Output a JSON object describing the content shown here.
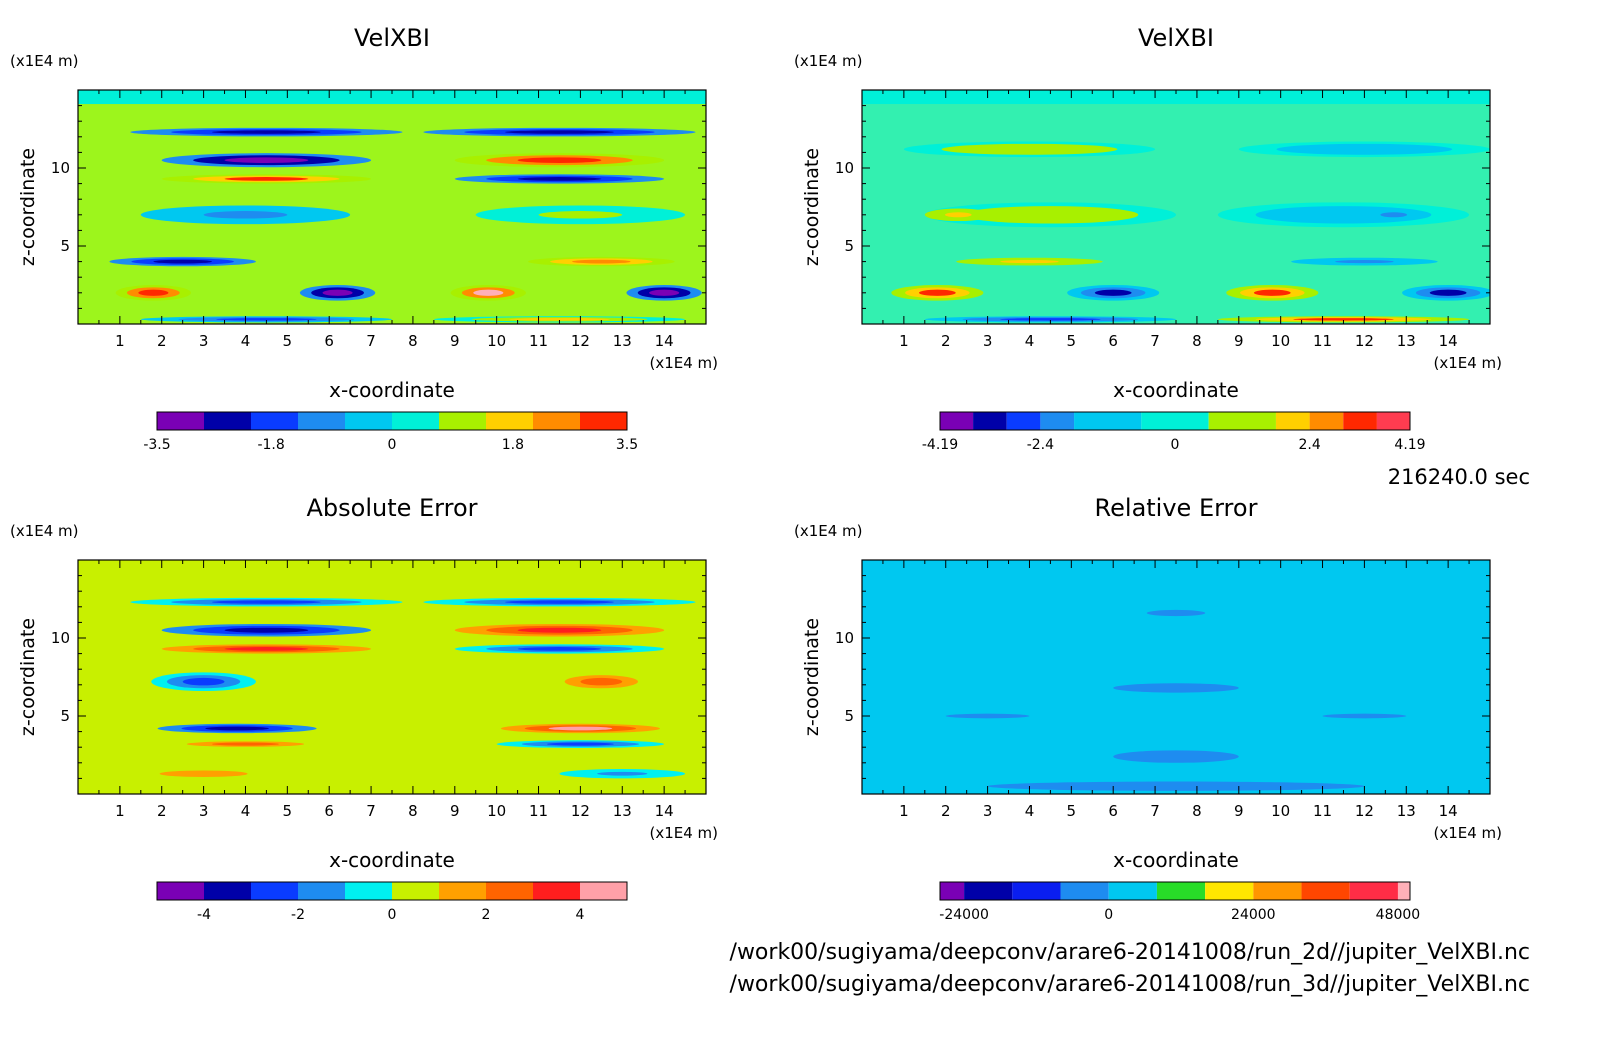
{
  "chart_data": [
    {
      "type": "heatmap",
      "title": "VelXBI",
      "xlabel": "x-coordinate",
      "ylabel": "z-coordinate",
      "x_unit": "(x1E4 m)",
      "y_unit": "(x1E4 m)",
      "xlim": [
        0,
        15
      ],
      "ylim": [
        0,
        15
      ],
      "x_ticks": [
        "1",
        "2",
        "3",
        "4",
        "5",
        "6",
        "7",
        "8",
        "9",
        "10",
        "11",
        "12",
        "13",
        "14"
      ],
      "y_ticks": [
        "5",
        "10"
      ],
      "colorbar": {
        "labels": [
          "-3.5",
          "-1.8",
          "0",
          "1.8",
          "3.5"
        ],
        "levels": [
          -3.5,
          -2.8,
          -2.1,
          -1.4,
          -0.7,
          0,
          0.7,
          1.4,
          2.1,
          2.8,
          3.5
        ],
        "colors": [
          "#7a00b5",
          "#0000a8",
          "#0a3cff",
          "#1e8cf0",
          "#00c8f0",
          "#00f0d8",
          "#a8f000",
          "#ffd000",
          "#ff8c00",
          "#ff2800",
          "#ff3c50",
          "#ffb0b8"
        ]
      },
      "background": "#9df51c",
      "features": [
        {
          "x": 4.5,
          "z": 12.3,
          "w": 6.5,
          "h": 0.55,
          "v": -2.5
        },
        {
          "x": 11.5,
          "z": 12.3,
          "w": 6.5,
          "h": 0.55,
          "v": -2.5
        },
        {
          "x": 4.5,
          "z": 10.5,
          "w": 5.0,
          "h": 0.9,
          "v": -3.2
        },
        {
          "x": 11.5,
          "z": 10.5,
          "w": 5.0,
          "h": 0.9,
          "v": 3.2
        },
        {
          "x": 4.5,
          "z": 9.3,
          "w": 5.0,
          "h": 0.6,
          "v": 2.8
        },
        {
          "x": 11.5,
          "z": 9.3,
          "w": 5.0,
          "h": 0.6,
          "v": -2.8
        },
        {
          "x": 4.0,
          "z": 7.0,
          "w": 5.0,
          "h": 1.2,
          "v": -0.8
        },
        {
          "x": 12.0,
          "z": 7.0,
          "w": 5.0,
          "h": 1.2,
          "v": 0.8
        },
        {
          "x": 2.5,
          "z": 4.0,
          "w": 3.5,
          "h": 0.6,
          "v": -2.6
        },
        {
          "x": 12.5,
          "z": 4.0,
          "w": 3.5,
          "h": 0.6,
          "v": 2.6
        },
        {
          "x": 1.8,
          "z": 2.0,
          "w": 1.8,
          "h": 1.0,
          "v": 3.3
        },
        {
          "x": 6.2,
          "z": 2.0,
          "w": 1.8,
          "h": 1.0,
          "v": -3.3
        },
        {
          "x": 9.8,
          "z": 2.0,
          "w": 1.8,
          "h": 1.0,
          "v": 3.5
        },
        {
          "x": 14.0,
          "z": 2.0,
          "w": 1.8,
          "h": 1.0,
          "v": -3.3
        },
        {
          "x": 4.5,
          "z": 0.3,
          "w": 6.0,
          "h": 0.4,
          "v": -2.0
        },
        {
          "x": 11.5,
          "z": 0.3,
          "w": 6.0,
          "h": 0.4,
          "v": 2.0
        }
      ]
    },
    {
      "type": "heatmap",
      "title": "VelXBI",
      "xlabel": "x-coordinate",
      "ylabel": "z-coordinate",
      "x_unit": "(x1E4 m)",
      "y_unit": "(x1E4 m)",
      "xlim": [
        0,
        15
      ],
      "ylim": [
        0,
        15
      ],
      "x_ticks": [
        "1",
        "2",
        "3",
        "4",
        "5",
        "6",
        "7",
        "8",
        "9",
        "10",
        "11",
        "12",
        "13",
        "14"
      ],
      "y_ticks": [
        "5",
        "10"
      ],
      "colorbar": {
        "labels": [
          "-4.19",
          "-2.4",
          "0",
          "2.4",
          "4.19"
        ],
        "levels": [
          -4.19,
          -3.6,
          -3.0,
          -2.4,
          -1.8,
          -0.6,
          0.6,
          1.8,
          2.4,
          3.0,
          3.6,
          4.19
        ],
        "colors": [
          "#7a00b5",
          "#0000a8",
          "#0a3cff",
          "#1e8cf0",
          "#00c8f0",
          "#00f0d8",
          "#a8f000",
          "#ffd000",
          "#ff8c00",
          "#ff2800",
          "#ff3c50",
          "#ffb0b8"
        ]
      },
      "background": "#33f0b0",
      "features": [
        {
          "x": 4.0,
          "z": 11.2,
          "w": 6.0,
          "h": 1.0,
          "v": 1.5
        },
        {
          "x": 12.0,
          "z": 11.2,
          "w": 6.0,
          "h": 1.0,
          "v": -1.5
        },
        {
          "x": 4.5,
          "z": 7.0,
          "w": 6.0,
          "h": 1.6,
          "v": 1.0
        },
        {
          "x": 11.5,
          "z": 7.0,
          "w": 6.0,
          "h": 1.6,
          "v": -1.0
        },
        {
          "x": 2.3,
          "z": 7.0,
          "w": 1.6,
          "h": 0.8,
          "v": 2.2
        },
        {
          "x": 12.7,
          "z": 7.0,
          "w": 1.6,
          "h": 0.8,
          "v": -2.2
        },
        {
          "x": 4.0,
          "z": 4.0,
          "w": 3.5,
          "h": 0.5,
          "v": 2.0
        },
        {
          "x": 12.0,
          "z": 4.0,
          "w": 3.5,
          "h": 0.5,
          "v": -2.0
        },
        {
          "x": 1.8,
          "z": 2.0,
          "w": 2.2,
          "h": 1.0,
          "v": 3.2
        },
        {
          "x": 6.0,
          "z": 2.0,
          "w": 2.2,
          "h": 1.0,
          "v": -3.4
        },
        {
          "x": 9.8,
          "z": 2.0,
          "w": 2.2,
          "h": 1.0,
          "v": 3.0
        },
        {
          "x": 14.0,
          "z": 2.0,
          "w": 2.2,
          "h": 1.0,
          "v": -3.4
        },
        {
          "x": 4.5,
          "z": 0.3,
          "w": 6.0,
          "h": 0.4,
          "v": -3.0
        },
        {
          "x": 11.5,
          "z": 0.3,
          "w": 6.0,
          "h": 0.4,
          "v": 3.0
        }
      ]
    },
    {
      "type": "heatmap",
      "title": "Absolute Error",
      "xlabel": "x-coordinate",
      "ylabel": "z-coordinate",
      "x_unit": "(x1E4 m)",
      "y_unit": "(x1E4 m)",
      "xlim": [
        0,
        15
      ],
      "ylim": [
        0,
        15
      ],
      "x_ticks": [
        "1",
        "2",
        "3",
        "4",
        "5",
        "6",
        "7",
        "8",
        "9",
        "10",
        "11",
        "12",
        "13",
        "14"
      ],
      "y_ticks": [
        "5",
        "10"
      ],
      "colorbar": {
        "labels": [
          "-4",
          "-2",
          "0",
          "2",
          "4"
        ],
        "levels": [
          -5,
          -4,
          -3,
          -2,
          -1,
          0,
          1,
          2,
          3,
          4,
          5
        ],
        "colors": [
          "#7a00b5",
          "#0000a8",
          "#0a3cff",
          "#1e8cf0",
          "#00f0f0",
          "#c8f000",
          "#ffa000",
          "#ff6400",
          "#ff1e1e",
          "#ffa0a8"
        ]
      },
      "background": "#c8f000",
      "features": [
        {
          "x": 4.5,
          "z": 12.3,
          "w": 6.5,
          "h": 0.55,
          "v": -2.5
        },
        {
          "x": 11.5,
          "z": 12.3,
          "w": 6.5,
          "h": 0.55,
          "v": -2.5
        },
        {
          "x": 4.5,
          "z": 10.5,
          "w": 5.0,
          "h": 0.8,
          "v": -3.5
        },
        {
          "x": 11.5,
          "z": 10.5,
          "w": 5.0,
          "h": 0.8,
          "v": 3.5
        },
        {
          "x": 4.5,
          "z": 9.3,
          "w": 5.0,
          "h": 0.6,
          "v": 3.0
        },
        {
          "x": 11.5,
          "z": 9.3,
          "w": 5.0,
          "h": 0.6,
          "v": -3.0
        },
        {
          "x": 3.0,
          "z": 7.2,
          "w": 2.5,
          "h": 1.2,
          "v": -2.8
        },
        {
          "x": 12.5,
          "z": 7.2,
          "w": 2.5,
          "h": 1.2,
          "v": 2.8
        },
        {
          "x": 3.8,
          "z": 4.2,
          "w": 3.8,
          "h": 0.6,
          "v": -3.8
        },
        {
          "x": 12.0,
          "z": 4.2,
          "w": 3.8,
          "h": 0.6,
          "v": 4.2
        },
        {
          "x": 4.0,
          "z": 3.2,
          "w": 4.0,
          "h": 0.5,
          "v": 2.5
        },
        {
          "x": 12.0,
          "z": 3.2,
          "w": 4.0,
          "h": 0.5,
          "v": -2.5
        },
        {
          "x": 3.0,
          "z": 1.3,
          "w": 3.0,
          "h": 0.6,
          "v": 1.5
        },
        {
          "x": 13.0,
          "z": 1.3,
          "w": 3.0,
          "h": 0.6,
          "v": -1.5
        }
      ]
    },
    {
      "type": "heatmap",
      "title": "Relative Error",
      "xlabel": "x-coordinate",
      "ylabel": "z-coordinate",
      "x_unit": "(x1E4 m)",
      "y_unit": "(x1E4 m)",
      "xlim": [
        0,
        15
      ],
      "ylim": [
        0,
        15
      ],
      "x_ticks": [
        "1",
        "2",
        "3",
        "4",
        "5",
        "6",
        "7",
        "8",
        "9",
        "10",
        "11",
        "12",
        "13",
        "14"
      ],
      "y_ticks": [
        "5",
        "10"
      ],
      "colorbar": {
        "labels": [
          "-24000",
          "0",
          "24000",
          "48000"
        ],
        "levels": [
          -28000,
          -24000,
          -16000,
          -8000,
          0,
          8000,
          16000,
          24000,
          32000,
          40000,
          48000,
          50000
        ],
        "colors": [
          "#7a00b5",
          "#0000a8",
          "#0a1ef0",
          "#1e8cf0",
          "#00c8f0",
          "#28dc28",
          "#ffe600",
          "#ff9600",
          "#ff4600",
          "#ff2d46",
          "#ffb0b8"
        ]
      },
      "background": "#00c8f0",
      "features": [
        {
          "x": 7.5,
          "z": 11.6,
          "w": 1.4,
          "h": 0.4,
          "v": -5000
        },
        {
          "x": 7.5,
          "z": 6.8,
          "w": 3.0,
          "h": 0.6,
          "v": -5000
        },
        {
          "x": 7.5,
          "z": 2.4,
          "w": 3.0,
          "h": 0.8,
          "v": -5000
        },
        {
          "x": 7.5,
          "z": 0.5,
          "w": 9.0,
          "h": 0.6,
          "v": -5000
        },
        {
          "x": 3.0,
          "z": 5.0,
          "w": 2.0,
          "h": 0.3,
          "v": -5000
        },
        {
          "x": 12.0,
          "z": 5.0,
          "w": 2.0,
          "h": 0.3,
          "v": -5000
        }
      ]
    }
  ],
  "time_label": "216240.0 sec",
  "files": [
    "/work00/sugiyama/deepconv/arare6-20141008/run_2d//jupiter_VelXBI.nc",
    "/work00/sugiyama/deepconv/arare6-20141008/run_3d//jupiter_VelXBI.nc"
  ]
}
